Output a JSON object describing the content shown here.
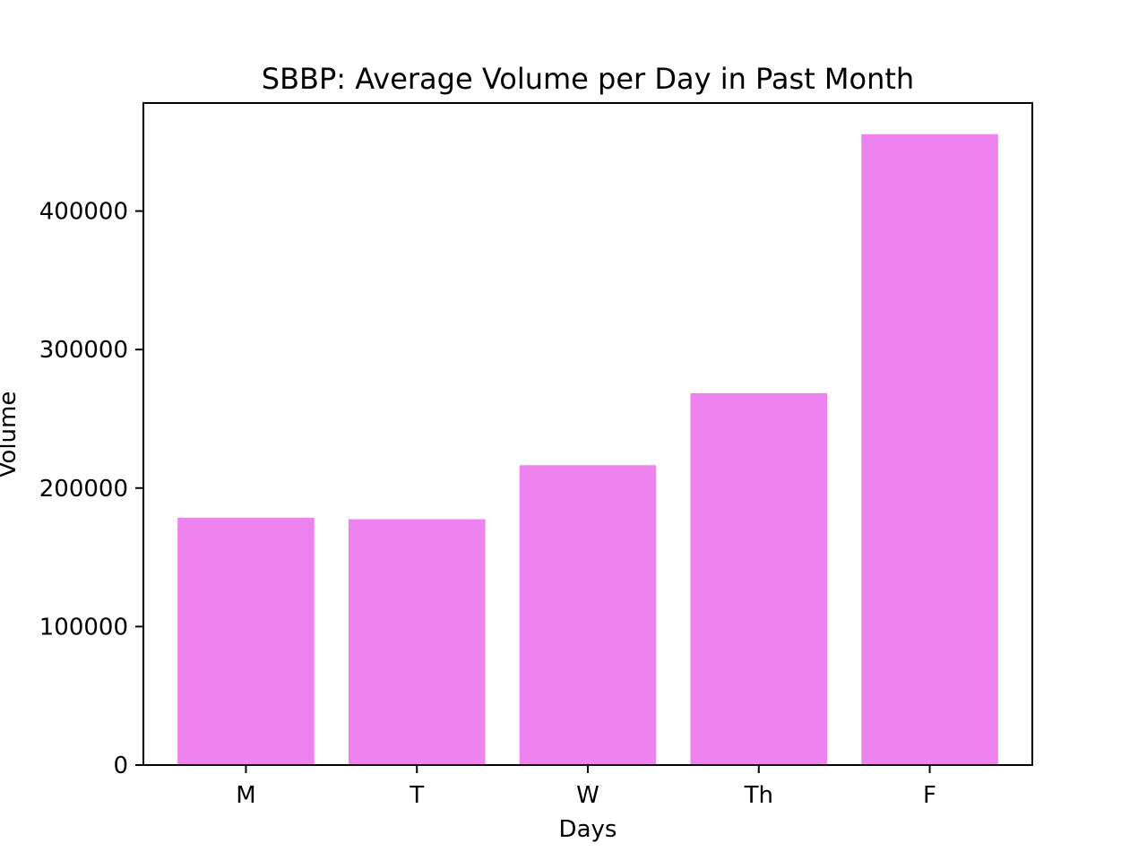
{
  "chart_data": {
    "type": "bar",
    "title": "SBBP: Average Volume per Day in Past Month",
    "xlabel": "Days",
    "ylabel": "Volume",
    "categories": [
      "M",
      "T",
      "W",
      "Th",
      "F"
    ],
    "values": [
      178500,
      177500,
      216500,
      268500,
      455500
    ],
    "ylim": [
      0,
      478000
    ],
    "yticks": [
      0,
      100000,
      200000,
      300000,
      400000
    ],
    "ytick_labels": [
      "0",
      "100000",
      "200000",
      "300000",
      "400000"
    ],
    "grid": false,
    "legend": "none",
    "colors": {
      "bar": "#ee82ee",
      "axis": "#000000",
      "text": "#000000",
      "background": "#ffffff"
    }
  }
}
